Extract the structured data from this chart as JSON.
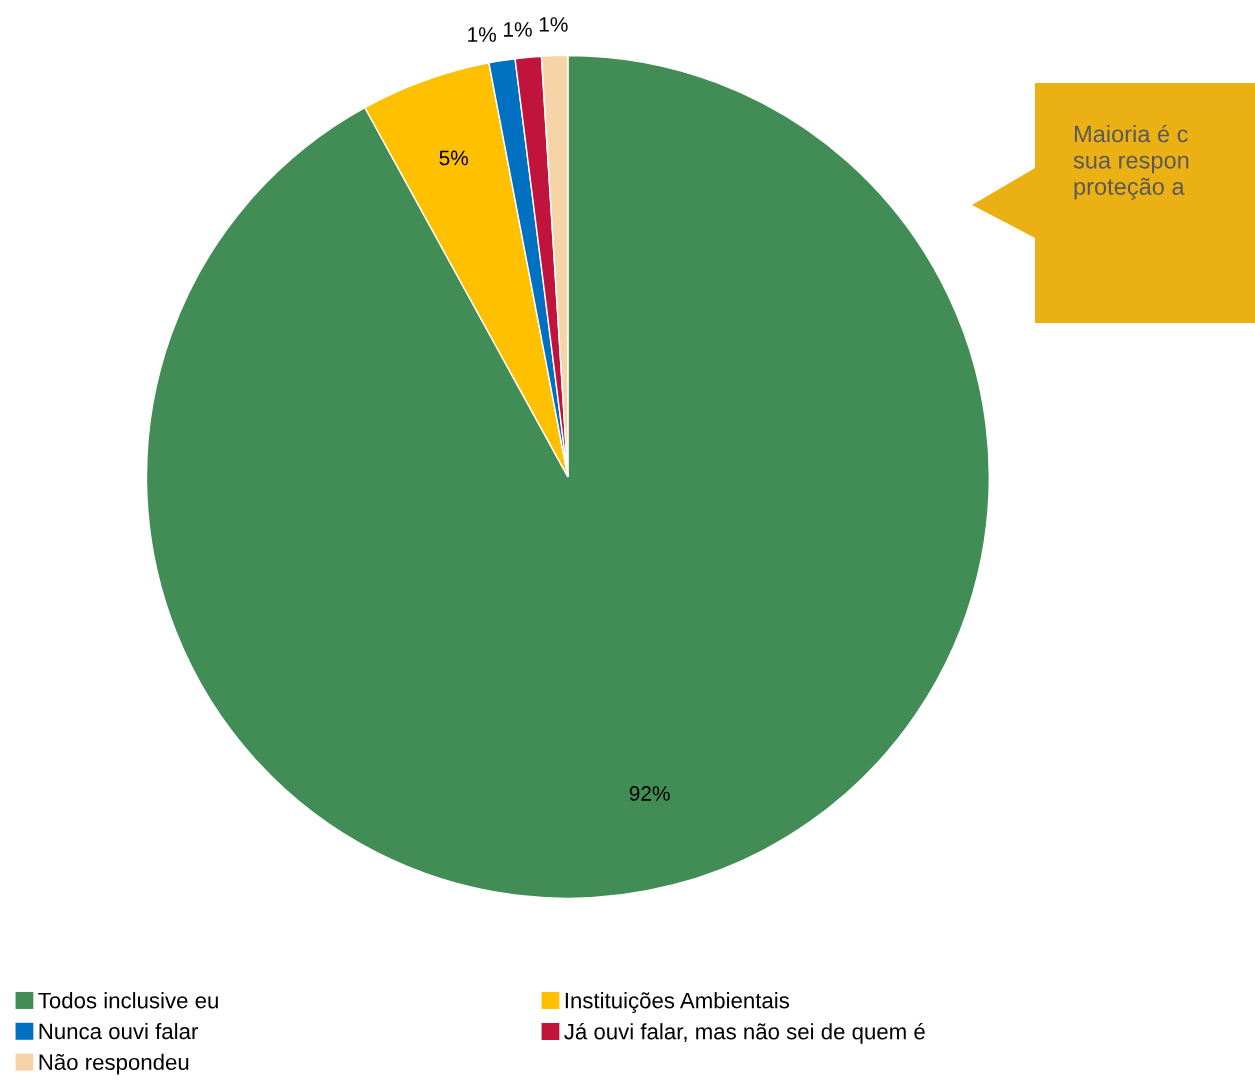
{
  "chart_data": {
    "type": "pie",
    "categories": [
      "Todos inclusive eu",
      "Instituições Ambientais",
      "Nunca ouvi falar",
      "Já ouvi falar, mas não sei de quem é",
      "Não respondeu"
    ],
    "values": [
      92,
      5,
      1,
      1,
      1
    ],
    "colors": [
      "#428c55",
      "#ffc000",
      "#0070c0",
      "#c0143c",
      "#f5d5a8"
    ],
    "value_labels": [
      "92%",
      "5%",
      "1%",
      "1%",
      "1%"
    ],
    "legend": "bottom",
    "annotations": [
      "Maioria é c\nsua respon\nproteção a"
    ]
  }
}
